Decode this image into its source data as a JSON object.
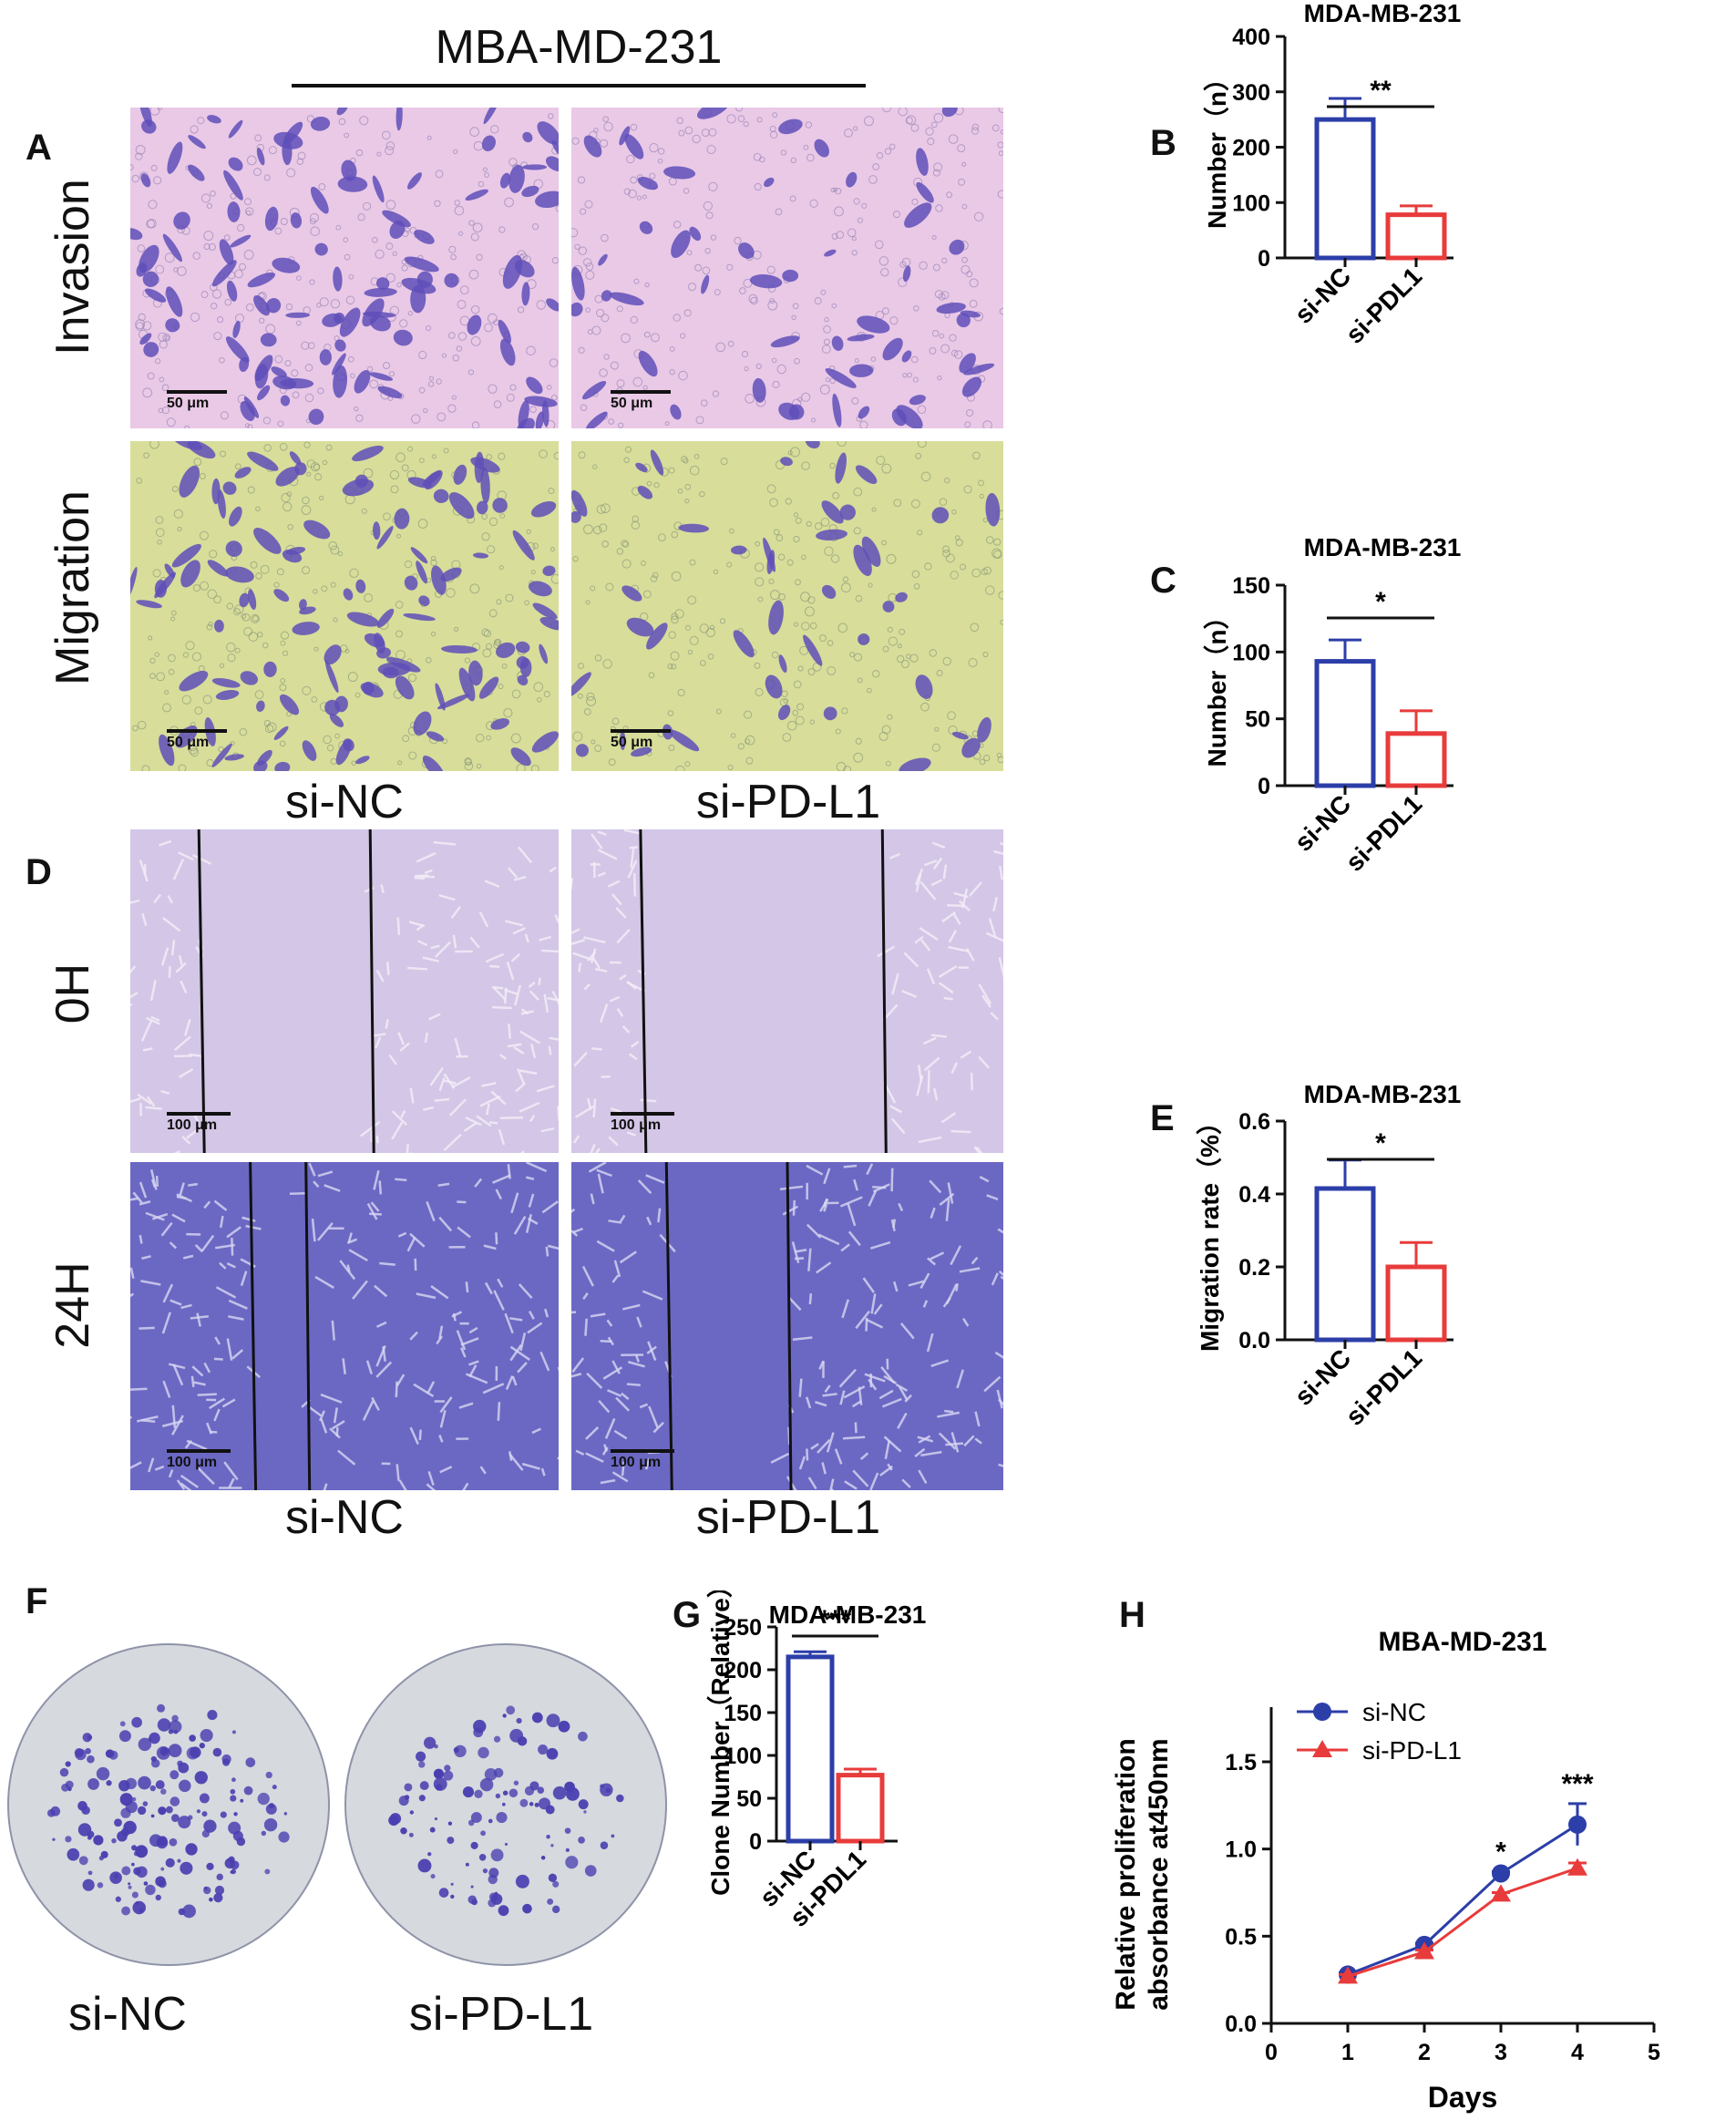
{
  "header": {
    "line_title": "MBA-MD-231"
  },
  "panel_labels": {
    "A": "A",
    "B": "B",
    "C": "C",
    "D": "D",
    "E": "E",
    "F": "F",
    "G": "G",
    "H": "H"
  },
  "panel_a": {
    "row_labels": [
      "Invasion",
      "Migration"
    ],
    "columns": [
      "si-NC",
      "si-PD-L1"
    ],
    "scale_bar": "50 μm",
    "colors": {
      "invasion_bg": "#e9c9e6",
      "migration_bg": "#d8dd9a",
      "cell": "#5f4fb8"
    }
  },
  "panel_d": {
    "row_labels": [
      "0H",
      "24H"
    ],
    "columns": [
      "si-NC",
      "si-PD-L1"
    ],
    "scale_bar": "100 μm",
    "colors": {
      "h0_bg": "#d3c6e6",
      "h24_bg": "#6b68c4"
    }
  },
  "panel_f": {
    "labels": [
      "si-NC",
      "si-PD-L1"
    ],
    "colors": {
      "plate": "#d6d9de",
      "colony": "#4a3fb0"
    }
  },
  "colors": {
    "si_nc": "#2c3ea8",
    "si_pdl1": "#e83b3b"
  },
  "chart_data": [
    {
      "id": "B",
      "type": "bar",
      "title": "MDA-MB-231",
      "categories": [
        "si-NC",
        "si-PDL1"
      ],
      "values": [
        250,
        78
      ],
      "errors": [
        38,
        16
      ],
      "ylabel": "Number（n）",
      "ylim": [
        0,
        400
      ],
      "yticks": [
        0,
        100,
        200,
        300,
        400
      ],
      "significance": "**"
    },
    {
      "id": "C",
      "type": "bar",
      "title": "MDA-MB-231",
      "categories": [
        "si-NC",
        "si-PDL1"
      ],
      "values": [
        93,
        39
      ],
      "errors": [
        16,
        17
      ],
      "ylabel": "Number（n）",
      "ylim": [
        0,
        150
      ],
      "yticks": [
        0,
        50,
        100,
        150
      ],
      "significance": "*"
    },
    {
      "id": "E",
      "type": "bar",
      "title": "MDA-MB-231",
      "categories": [
        "si-NC",
        "si-PDL1"
      ],
      "values": [
        0.415,
        0.2
      ],
      "errors": [
        0.078,
        0.067
      ],
      "ylabel": "Migration rate（%）",
      "ylim": [
        0,
        0.6
      ],
      "yticks": [
        "0.0",
        "0.2",
        "0.4",
        "0.6"
      ],
      "significance": "*"
    },
    {
      "id": "G",
      "type": "bar",
      "title": "MDA-MB-231",
      "categories": [
        "si-NC",
        "si-PDL1"
      ],
      "values": [
        215,
        77
      ],
      "errors": [
        6,
        7
      ],
      "ylabel": "Clone Number（Relative）",
      "ylim": [
        0,
        250
      ],
      "yticks": [
        0,
        50,
        100,
        150,
        200,
        250
      ],
      "significance": "***"
    },
    {
      "id": "H",
      "type": "line",
      "title": "MBA-MD-231",
      "xlabel": "Days",
      "ylabel": "Relative proliferation absorbance at450nm",
      "xlim": [
        0,
        5
      ],
      "xticks": [
        0,
        1,
        2,
        3,
        4,
        5
      ],
      "ylim": [
        0,
        1.5
      ],
      "yticks": [
        "0.0",
        "0.5",
        "1.0",
        "1.5"
      ],
      "series": [
        {
          "name": "si-NC",
          "x": [
            1,
            2,
            3,
            4
          ],
          "y": [
            0.28,
            0.45,
            0.86,
            1.14
          ],
          "errors": [
            0.01,
            0.01,
            0.01,
            0.12
          ],
          "marker": "circle"
        },
        {
          "name": "si-PD-L1",
          "x": [
            1,
            2,
            3,
            4
          ],
          "y": [
            0.27,
            0.41,
            0.74,
            0.89
          ],
          "errors": [
            0.01,
            0.01,
            0.01,
            0.03
          ],
          "marker": "triangle"
        }
      ],
      "annotations": [
        {
          "x": 3,
          "text": "*"
        },
        {
          "x": 4,
          "text": "***"
        }
      ],
      "legend": "top-left"
    }
  ]
}
